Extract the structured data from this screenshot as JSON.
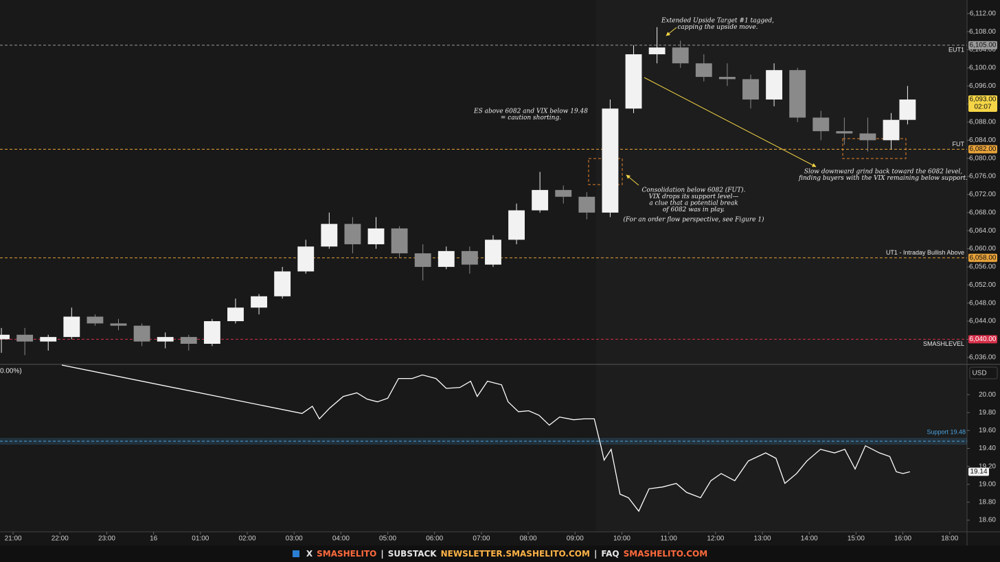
{
  "chart_data": [
    {
      "type": "candlestick",
      "x": [
        -0.25,
        0.25,
        0.75,
        1.25,
        1.75,
        2.25,
        2.75,
        3.25,
        3.75,
        4.25,
        4.75,
        5.25,
        5.75,
        6.25,
        6.75,
        7.25,
        7.75,
        8.25,
        8.75,
        9.25,
        9.75,
        10.25,
        10.75,
        11.25,
        11.75,
        12.25,
        12.75,
        13.25,
        13.75,
        14.25,
        14.75,
        15.25,
        15.75,
        16.25,
        16.75,
        17.25,
        17.75,
        18.25,
        18.75,
        19.1
      ],
      "open": [
        6040,
        6041,
        6039.5,
        6040.5,
        6045,
        6043.5,
        6043,
        6039.5,
        6040.5,
        6039,
        6044,
        6047,
        6049.5,
        6055,
        6060.5,
        6065.5,
        6061,
        6064.5,
        6059,
        6056,
        6059.5,
        6056.5,
        6062,
        6068.5,
        6073,
        6071.5,
        6068,
        6091,
        6103,
        6104.5,
        6101,
        6098,
        6097.5,
        6093,
        6099.5,
        6089,
        6086,
        6085.5,
        6084,
        6088.5
      ],
      "high": [
        6042.5,
        6042.5,
        6041,
        6047,
        6045.5,
        6044.5,
        6043.5,
        6041.5,
        6041,
        6044.5,
        6049,
        6050,
        6056,
        6062,
        6068,
        6067,
        6067,
        6065,
        6061,
        6060.5,
        6060.5,
        6063,
        6070,
        6077,
        6074,
        6072.5,
        6093,
        6105,
        6109,
        6106,
        6103,
        6101,
        6098.5,
        6101,
        6100,
        6090.5,
        6089,
        6089,
        6090,
        6096
      ],
      "low": [
        6037,
        6036.5,
        6037.5,
        6040,
        6043,
        6042,
        6038.5,
        6038,
        6037.5,
        6038.5,
        6043.5,
        6045.5,
        6049,
        6054.5,
        6060,
        6059,
        6060,
        6058,
        6053,
        6055.5,
        6054.5,
        6056,
        6061,
        6068,
        6070,
        6066.5,
        6067,
        6090,
        6101,
        6100,
        6097,
        6096,
        6091,
        6091.5,
        6088,
        6084,
        6083,
        6081.5,
        6082,
        6087.5
      ],
      "close": [
        6041,
        6039.5,
        6040.5,
        6045,
        6043.5,
        6043,
        6039.5,
        6040.5,
        6039,
        6044,
        6047,
        6049.5,
        6055,
        6060.5,
        6065.5,
        6061,
        6064.5,
        6059,
        6056,
        6059.5,
        6056.5,
        6062,
        6068.5,
        6073,
        6071.5,
        6068,
        6091,
        6103,
        6104.5,
        6101,
        6098,
        6097.5,
        6093,
        6099.5,
        6089,
        6086,
        6085.5,
        6084,
        6088.5,
        6093
      ],
      "xlim": [
        -0.28,
        20.37
      ],
      "ylim": [
        6034.6,
        6115.0
      ],
      "yticks": [
        {
          "value": 6036,
          "label": "6,036.00"
        },
        {
          "value": 6040,
          "label": "6,040.00"
        },
        {
          "value": 6044,
          "label": "6,044.00"
        },
        {
          "value": 6048,
          "label": "6,048.00"
        },
        {
          "value": 6052,
          "label": "6,052.00"
        },
        {
          "value": 6056,
          "label": "6,056.00"
        },
        {
          "value": 6060,
          "label": "6,060.00"
        },
        {
          "value": 6064,
          "label": "6,064.00"
        },
        {
          "value": 6068,
          "label": "6,068.00"
        },
        {
          "value": 6072,
          "label": "6,072.00"
        },
        {
          "value": 6076,
          "label": "6,076.00"
        },
        {
          "value": 6080,
          "label": "6,080.00"
        },
        {
          "value": 6084,
          "label": "6,084.00"
        },
        {
          "value": 6088,
          "label": "6,088.00"
        },
        {
          "value": 6092,
          "label": "6,092.00"
        },
        {
          "value": 6096,
          "label": "6,096.00"
        },
        {
          "value": 6100,
          "label": "6,100.00"
        },
        {
          "value": 6104,
          "label": "6,104.00"
        },
        {
          "value": 6108,
          "label": "6,108.00"
        },
        {
          "value": 6112,
          "label": "6,112.00"
        }
      ],
      "up_color": "#f2f2f2",
      "down_color": "#8a8a8a",
      "levels": [
        {
          "name": "EUT1",
          "value": 6105,
          "label": "6,105.00",
          "color": "#9a9a9a"
        },
        {
          "name": "FUT",
          "value": 6082,
          "label": "6,082.00",
          "color": "#e8a33a"
        },
        {
          "name": "UT1 - Intraday Bullish Above",
          "value": 6058,
          "label": "6,058.00",
          "color": "#e8a33a"
        },
        {
          "name": "SMASHLEVEL",
          "value": 6040,
          "label": "6,040.00",
          "color": "#d6304a"
        }
      ],
      "last": {
        "value": 6093,
        "label": "6,093.00",
        "countdown": "02:07",
        "color": "#f5d547"
      },
      "annotations": [
        {
          "lines": [
            "Extended Upside Target #1 tagged,",
            "capping the upside move."
          ]
        },
        {
          "lines": [
            "ES above 6082 and VIX below 19.48",
            "= caution shorting."
          ]
        },
        {
          "lines": [
            "Consolidation below 6082 (FUT).",
            "VIX drops its support level—",
            "a clue that a potential break",
            "of 6082 was in play."
          ]
        },
        {
          "lines": [
            "(For an order flow perspective, see Figure 1)"
          ]
        },
        {
          "lines": [
            "Slow downward grind back toward the 6082 level,",
            "finding buyers with the VIX remaining below support."
          ]
        }
      ]
    },
    {
      "type": "line",
      "scale_label": "0.00%)",
      "currency": "USD",
      "x": [
        1.04,
        6.17,
        6.39,
        6.54,
        6.76,
        7.05,
        7.34,
        7.56,
        7.78,
        8.0,
        8.23,
        8.52,
        8.74,
        9.03,
        9.25,
        9.54,
        9.77,
        9.91,
        10.13,
        10.43,
        10.57,
        10.79,
        11.01,
        11.23,
        11.45,
        11.67,
        11.97,
        12.19,
        12.41,
        12.55,
        12.62,
        12.77,
        12.96,
        13.14,
        13.36,
        13.58,
        13.87,
        14.16,
        14.38,
        14.68,
        14.9,
        15.12,
        15.41,
        15.7,
        16.07,
        16.29,
        16.48,
        16.73,
        16.95,
        17.24,
        17.54,
        17.76,
        17.98,
        18.2,
        18.5,
        18.72,
        18.86,
        19.0,
        19.15
      ],
      "values": [
        20.33,
        19.79,
        19.87,
        19.73,
        19.85,
        19.98,
        20.02,
        19.95,
        19.92,
        19.96,
        20.18,
        20.18,
        20.22,
        20.18,
        20.07,
        20.08,
        20.15,
        19.98,
        20.15,
        20.11,
        19.92,
        19.81,
        19.82,
        19.77,
        19.66,
        19.75,
        19.72,
        19.73,
        19.73,
        19.43,
        19.27,
        19.39,
        18.89,
        18.85,
        18.7,
        18.95,
        18.97,
        19.01,
        18.91,
        18.85,
        19.04,
        19.12,
        19.04,
        19.26,
        19.35,
        19.29,
        19.01,
        19.12,
        19.26,
        19.39,
        19.35,
        19.39,
        19.17,
        19.43,
        19.35,
        19.31,
        19.14,
        19.12,
        19.14
      ],
      "color": "#ffffff",
      "xlim": [
        -0.28,
        20.37
      ],
      "ylim": [
        18.47,
        20.33
      ],
      "xticks": [
        {
          "value": 0,
          "label": "21:00"
        },
        {
          "value": 1,
          "label": "22:00"
        },
        {
          "value": 2,
          "label": "23:00"
        },
        {
          "value": 3,
          "label": "16"
        },
        {
          "value": 4,
          "label": "01:00"
        },
        {
          "value": 5,
          "label": "02:00"
        },
        {
          "value": 6,
          "label": "03:00"
        },
        {
          "value": 7,
          "label": "04:00"
        },
        {
          "value": 8,
          "label": "05:00"
        },
        {
          "value": 9,
          "label": "06:00"
        },
        {
          "value": 10,
          "label": "07:00"
        },
        {
          "value": 11,
          "label": "08:00"
        },
        {
          "value": 12,
          "label": "09:00"
        },
        {
          "value": 13,
          "label": "10:00"
        },
        {
          "value": 14,
          "label": "11:00"
        },
        {
          "value": 15,
          "label": "12:00"
        },
        {
          "value": 16,
          "label": "13:00"
        },
        {
          "value": 17,
          "label": "14:00"
        },
        {
          "value": 18,
          "label": "15:00"
        },
        {
          "value": 19,
          "label": "16:00"
        },
        {
          "value": 20,
          "label": "18:00"
        }
      ],
      "yticks": [
        {
          "value": 18.6,
          "label": "18.60"
        },
        {
          "value": 18.8,
          "label": "18.80"
        },
        {
          "value": 19.0,
          "label": "19.00"
        },
        {
          "value": 19.2,
          "label": "19.20"
        },
        {
          "value": 19.4,
          "label": "19.40"
        },
        {
          "value": 19.6,
          "label": "19.60"
        },
        {
          "value": 19.8,
          "label": "19.80"
        },
        {
          "value": 20.0,
          "label": "20.00"
        }
      ],
      "support": {
        "name": "Support 19.48",
        "value": 19.48,
        "color": "#4aa3df"
      },
      "last": {
        "value": 19.14,
        "label": "19.14"
      }
    }
  ],
  "footer": {
    "items": [
      {
        "text": "X",
        "color": "#e6e6e6"
      },
      {
        "text": "SMASHELITO",
        "color": "#ff6a3d"
      },
      {
        "text": "|",
        "color": "#e6e6e6"
      },
      {
        "text": "SUBSTACK",
        "color": "#e6e6e6"
      },
      {
        "text": "NEWSLETTER.SMASHELITO.COM",
        "color": "#ffb347"
      },
      {
        "text": "|",
        "color": "#e6e6e6"
      },
      {
        "text": "FAQ",
        "color": "#e6e6e6"
      },
      {
        "text": "SMASHELITO.COM",
        "color": "#ff6a3d"
      }
    ]
  }
}
